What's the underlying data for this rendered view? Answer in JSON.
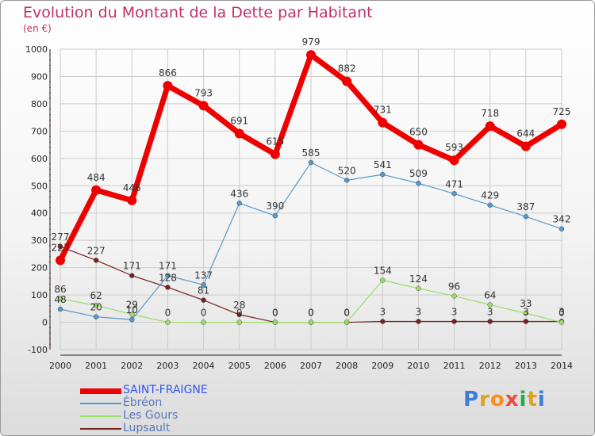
{
  "header": {
    "title": "Evolution du Montant de la Dette par Habitant",
    "subtitle": "(en €)"
  },
  "logo": {
    "text": "Proxiti",
    "letter_colors": [
      "#3a7fd5",
      "#e0a020",
      "#ff8c1a",
      "#e84c3d",
      "#2ba84a",
      "#e0a020",
      "#3a7fd5"
    ]
  },
  "chart_data": {
    "type": "line",
    "title": "Evolution du Montant de la Dette par Habitant",
    "subtitle": "(en €)",
    "xlabel": "",
    "ylabel": "",
    "ylim": [
      -100,
      1000
    ],
    "yticks": [
      -100,
      0,
      100,
      200,
      300,
      400,
      500,
      600,
      700,
      800,
      900,
      1000
    ],
    "grid": true,
    "legend": "bottom-left",
    "categories": [
      "2000",
      "2001",
      "2002",
      "2003",
      "2004",
      "2005",
      "2006",
      "2007",
      "2008",
      "2009",
      "2010",
      "2011",
      "2012",
      "2013",
      "2014"
    ],
    "series": [
      {
        "name": "SAINT-FRAIGNE",
        "color": "#ee0000",
        "values": [
          227,
          484,
          446,
          866,
          793,
          691,
          615,
          979,
          882,
          731,
          650,
          593,
          718,
          644,
          725
        ],
        "labels": [
          "227",
          "484",
          "446",
          "866",
          "793",
          "691",
          "615",
          "979",
          "882",
          "731",
          "650",
          "593",
          "718",
          "644",
          "725"
        ]
      },
      {
        "name": "Ébréon",
        "color": "#5599cc",
        "values": [
          48,
          20,
          10,
          171,
          137,
          436,
          390,
          585,
          520,
          541,
          509,
          471,
          429,
          387,
          342
        ],
        "labels": [
          "48",
          "20",
          "10",
          "171",
          "137",
          "436",
          "390",
          "585",
          "520",
          "541",
          "509",
          "471",
          "429",
          "387",
          "342"
        ]
      },
      {
        "name": "Les Gours",
        "color": "#99dd66",
        "values": [
          86,
          62,
          29,
          0,
          0,
          0,
          0,
          0,
          0,
          154,
          124,
          96,
          64,
          33,
          0
        ],
        "labels": [
          "86",
          "62",
          "29",
          "0",
          "0",
          "0",
          "0",
          "0",
          "0",
          "154",
          "124",
          "96",
          "64",
          "33",
          "0"
        ]
      },
      {
        "name": "Lupsault",
        "color": "#772222",
        "values": [
          277,
          227,
          171,
          128,
          81,
          28,
          0,
          0,
          0,
          3,
          3,
          3,
          3,
          3,
          3
        ],
        "labels": [
          "277",
          "227",
          "171",
          "128",
          "81",
          "28",
          "0",
          "0",
          "0",
          "3",
          "3",
          "3",
          "3",
          "3",
          "3"
        ]
      }
    ]
  }
}
